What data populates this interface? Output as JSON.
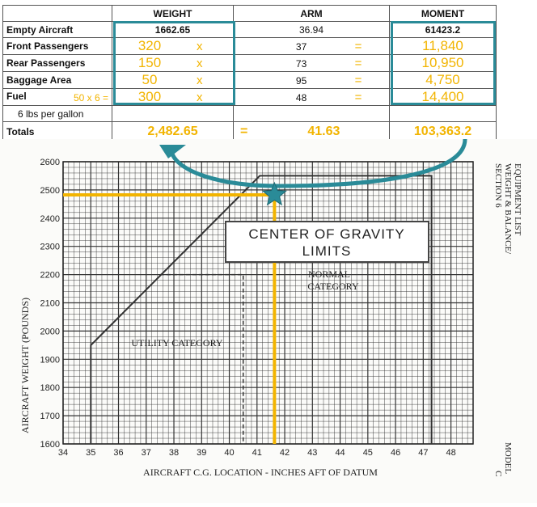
{
  "table": {
    "headers": {
      "col1": "",
      "weight": "WEIGHT",
      "arm": "ARM",
      "moment": "MOMENT"
    },
    "rows": {
      "empty": {
        "label": "Empty Aircraft",
        "weight": "1662.65",
        "arm": "36.94",
        "moment": "61423.2"
      },
      "front": {
        "label": "Front Passengers",
        "weight": "320",
        "op": "x",
        "arm": "37",
        "eq": "=",
        "moment": "11,840"
      },
      "rear": {
        "label": "Rear Passengers",
        "weight": "150",
        "op": "x",
        "arm": "73",
        "eq": "=",
        "moment": "10,950"
      },
      "baggage": {
        "label": "Baggage Area",
        "weight": "50",
        "op": "x",
        "arm": "95",
        "eq": "=",
        "moment": "4,750"
      },
      "fuel": {
        "label": "Fuel",
        "calc": "50 x 6 =",
        "weight": "300",
        "op": "x",
        "arm": "48",
        "eq": "=",
        "moment": "14,400"
      },
      "fuel_note": {
        "label": "6 lbs per gallon"
      },
      "totals": {
        "label": "Totals",
        "weight": "2,482.65",
        "eq": "=",
        "arm": "41.63",
        "moment": "103,363.2"
      }
    }
  },
  "chart_data": {
    "type": "line",
    "title": "CENTER OF GRAVITY LIMITS",
    "xlabel": "AIRCRAFT C.G. LOCATION - INCHES AFT OF DATUM",
    "ylabel": "AIRCRAFT WEIGHT (POUNDS)",
    "xlim": [
      34,
      48.8
    ],
    "ylim": [
      1600,
      2600
    ],
    "x_ticks": [
      34,
      35,
      36,
      37,
      38,
      39,
      40,
      41,
      42,
      43,
      44,
      45,
      46,
      47,
      48
    ],
    "y_ticks": [
      1600,
      1700,
      1800,
      1900,
      2000,
      2100,
      2200,
      2300,
      2400,
      2500,
      2600
    ],
    "normal_envelope": [
      [
        35,
        1600
      ],
      [
        35,
        1950
      ],
      [
        41.1,
        2550
      ],
      [
        47.3,
        2550
      ],
      [
        47.3,
        1600
      ]
    ],
    "utility_envelope": [
      [
        37.5,
        2200
      ],
      [
        40.5,
        2200
      ],
      [
        40.5,
        1600
      ]
    ],
    "region_labels": {
      "normal_line1": "NORMAL",
      "normal_line2": "CATEGORY",
      "utility": "UTILITY CATEGORY"
    },
    "annotation": {
      "weight": 2482.65,
      "cg": 41.63
    },
    "side_text": {
      "section_line1": "SECTION 6",
      "section_line2": "WEIGHT & BALANCE/",
      "section_line3": "EQUIPMENT LIST",
      "model_line1": "C",
      "model_line2": "MODEL"
    },
    "colors": {
      "highlight": "#f2b400",
      "arrow": "#2a8b98",
      "grid": "#333333"
    }
  }
}
